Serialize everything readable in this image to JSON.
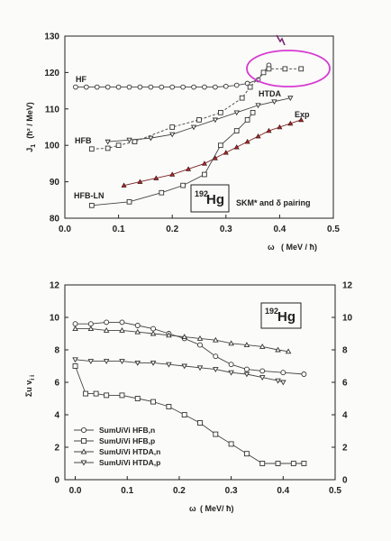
{
  "chart_data": [
    {
      "type": "line",
      "xlim": [
        0.0,
        0.5
      ],
      "ylim": [
        80,
        130
      ],
      "xticks": [
        "0.0",
        "0.1",
        "0.2",
        "0.3",
        "0.4",
        "0.5"
      ],
      "yticks": [
        "80",
        "90",
        "100",
        "110",
        "120",
        "130"
      ],
      "ylabel_main": "J",
      "ylabel_sub": "1",
      "ylabel_units": "(ħ² / MeV)",
      "xlabel_symbol": "ω",
      "xlabel_units": "( MeV / ħ)",
      "annotation_nucleus_mass": "192",
      "annotation_nucleus_symbol": "Hg",
      "annotation_text": "SKM* and δ pairing",
      "series": [
        {
          "name": "HF",
          "marker": "circle",
          "line": "solid",
          "x": [
            0.02,
            0.04,
            0.06,
            0.08,
            0.1,
            0.12,
            0.14,
            0.16,
            0.18,
            0.2,
            0.22,
            0.24,
            0.26,
            0.28,
            0.3,
            0.32,
            0.34,
            0.36,
            0.38
          ],
          "y": [
            116,
            116,
            116,
            116,
            116,
            116,
            116,
            116,
            116,
            116,
            116,
            116,
            116,
            116,
            116.2,
            116.5,
            117,
            118,
            122
          ]
        },
        {
          "name": "HFB",
          "marker": "square",
          "line": "dashed",
          "x": [
            0.05,
            0.08,
            0.1,
            0.13,
            0.2,
            0.25,
            0.29,
            0.33,
            0.345,
            0.37,
            0.38,
            0.41,
            0.44
          ],
          "y": [
            99,
            99.2,
            100,
            101,
            105,
            107,
            109,
            113,
            116,
            120,
            121,
            121,
            121
          ]
        },
        {
          "name": "HTDA",
          "marker": "triangle-down",
          "line": "solid",
          "x": [
            0.08,
            0.12,
            0.16,
            0.2,
            0.24,
            0.28,
            0.32,
            0.36,
            0.39,
            0.42
          ],
          "y": [
            101,
            101.5,
            102,
            103,
            105,
            107,
            109,
            111,
            112,
            113
          ]
        },
        {
          "name": "Exp",
          "marker": "triangle-up-filled",
          "line": "solid",
          "x": [
            0.11,
            0.14,
            0.17,
            0.2,
            0.23,
            0.26,
            0.28,
            0.3,
            0.32,
            0.34,
            0.36,
            0.38,
            0.4,
            0.42,
            0.44
          ],
          "y": [
            89,
            90,
            91,
            92,
            93.5,
            95,
            96.5,
            98,
            99.5,
            101,
            102.5,
            104,
            105,
            106,
            107
          ]
        },
        {
          "name": "HFB-LN",
          "marker": "square",
          "line": "solid",
          "x": [
            0.05,
            0.12,
            0.18,
            0.22,
            0.26,
            0.29,
            0.32,
            0.34,
            0.35
          ],
          "y": [
            83.5,
            84.5,
            87,
            89,
            92,
            100,
            104,
            107,
            109
          ]
        }
      ]
    },
    {
      "type": "line",
      "xlim": [
        -0.02,
        0.5
      ],
      "ylim": [
        0,
        12
      ],
      "xticks": [
        "0.0",
        "0.1",
        "0.2",
        "0.3",
        "0.4",
        "0.5"
      ],
      "yticks": [
        "0",
        "2",
        "4",
        "6",
        "8",
        "10",
        "12"
      ],
      "yticks_right": [
        "0",
        "2",
        "4",
        "6",
        "8",
        "10",
        "12"
      ],
      "ylabel": "Σu v",
      "ylabel_sub": "i i",
      "xlabel_symbol": "ω",
      "xlabel_units": "( MeV/ ħ)",
      "annotation_nucleus_mass": "192",
      "annotation_nucleus_symbol": "Hg",
      "series": [
        {
          "name": "SumUiVi HFB,n",
          "marker": "circle",
          "x": [
            0.0,
            0.03,
            0.06,
            0.09,
            0.12,
            0.15,
            0.18,
            0.21,
            0.24,
            0.27,
            0.3,
            0.33,
            0.36,
            0.4,
            0.44
          ],
          "y": [
            9.6,
            9.6,
            9.7,
            9.7,
            9.5,
            9.3,
            9.0,
            8.7,
            8.3,
            7.6,
            7.1,
            6.8,
            6.7,
            6.6,
            6.5
          ]
        },
        {
          "name": "SumUiVi HFB,p",
          "marker": "square",
          "x": [
            0.0,
            0.02,
            0.04,
            0.06,
            0.09,
            0.12,
            0.15,
            0.18,
            0.21,
            0.24,
            0.27,
            0.3,
            0.33,
            0.36,
            0.39,
            0.42,
            0.44
          ],
          "y": [
            7.0,
            5.3,
            5.3,
            5.2,
            5.2,
            5.0,
            4.8,
            4.5,
            4.0,
            3.5,
            2.8,
            2.2,
            1.6,
            1.0,
            1.0,
            1.0,
            1.0
          ]
        },
        {
          "name": "SumUiVi HTDA,n",
          "marker": "triangle-up",
          "x": [
            0.0,
            0.03,
            0.06,
            0.09,
            0.12,
            0.15,
            0.18,
            0.21,
            0.24,
            0.27,
            0.3,
            0.33,
            0.36,
            0.39,
            0.41
          ],
          "y": [
            9.3,
            9.3,
            9.2,
            9.2,
            9.1,
            9.0,
            8.9,
            8.8,
            8.7,
            8.6,
            8.4,
            8.3,
            8.2,
            8.0,
            7.9
          ]
        },
        {
          "name": "SumUiVi HTDA,p",
          "marker": "triangle-down",
          "x": [
            0.0,
            0.03,
            0.06,
            0.09,
            0.12,
            0.15,
            0.18,
            0.21,
            0.24,
            0.27,
            0.3,
            0.33,
            0.36,
            0.39,
            0.4
          ],
          "y": [
            7.4,
            7.3,
            7.3,
            7.3,
            7.2,
            7.2,
            7.1,
            7.0,
            6.9,
            6.8,
            6.6,
            6.5,
            6.3,
            6.1,
            6.0
          ]
        }
      ]
    }
  ]
}
